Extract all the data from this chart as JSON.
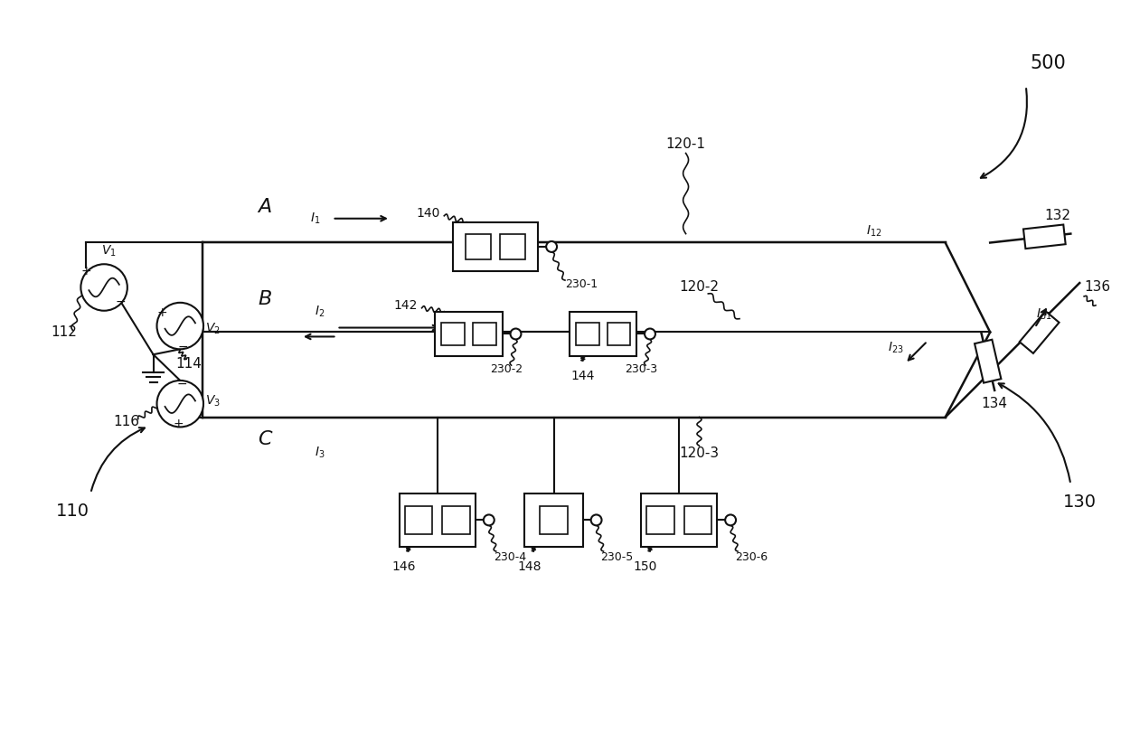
{
  "bg_color": "#ffffff",
  "fig_width": 12.4,
  "fig_height": 8.32,
  "label_500": "500",
  "label_110": "110",
  "label_130": "130",
  "label_112": "112",
  "label_114": "114",
  "label_116": "116",
  "label_132": "132",
  "label_134": "134",
  "label_136": "136",
  "label_140": "140",
  "label_142": "142",
  "label_144": "144",
  "label_146": "146",
  "label_148": "148",
  "label_150": "150",
  "label_1201": "120-1",
  "label_1202": "120-2",
  "label_1203": "120-3",
  "label_2301": "230-1",
  "label_2302": "230-2",
  "label_2303": "230-3",
  "label_2304": "230-4",
  "label_2305": "230-5",
  "label_2306": "230-6",
  "lw": 1.5
}
